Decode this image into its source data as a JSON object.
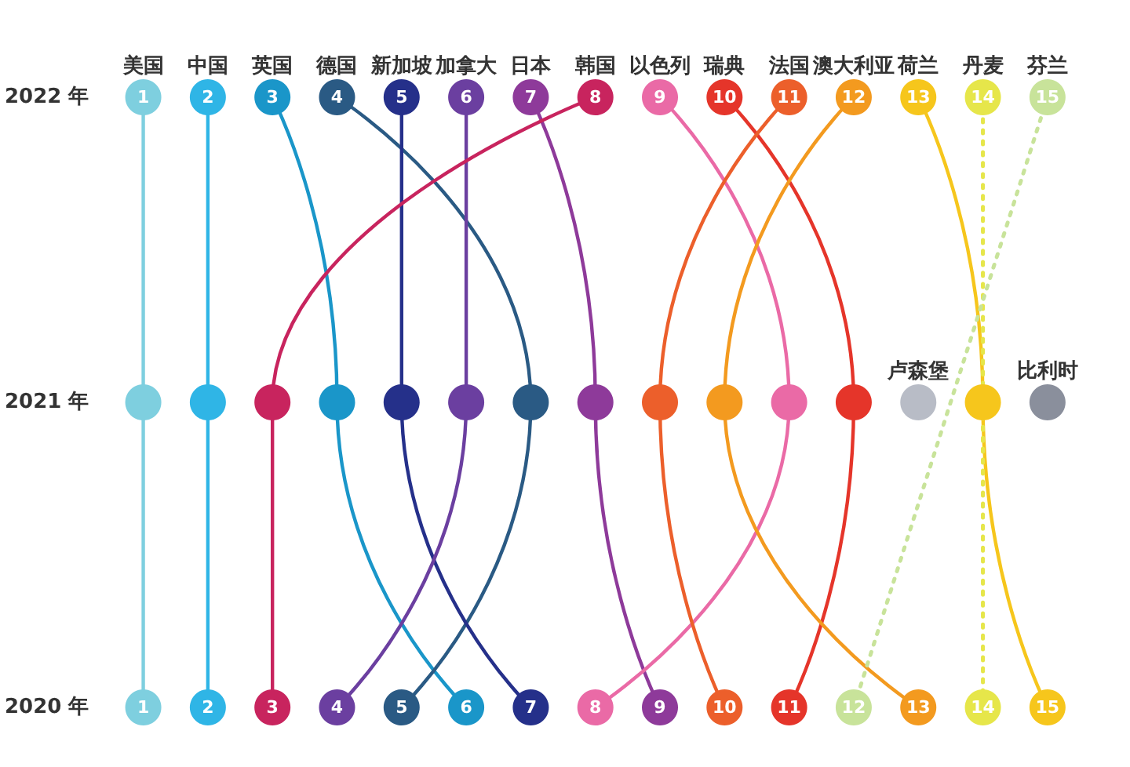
{
  "chart_data": {
    "type": "line",
    "orientation": "horizontal",
    "categories": [
      "2022 年",
      "2021 年",
      "2020 年"
    ],
    "marker": "circle",
    "line_style": "solid",
    "grid": false,
    "legend": false,
    "series": [
      {
        "name": "美国",
        "color": "#7ecfdf",
        "values": [
          1,
          1,
          1
        ],
        "value_labels": [
          "1",
          null,
          "1"
        ]
      },
      {
        "name": "中国",
        "color": "#2fb5e6",
        "values": [
          2,
          2,
          2
        ],
        "value_labels": [
          "2",
          null,
          "2"
        ]
      },
      {
        "name": "英国",
        "color": "#1a96c9",
        "values": [
          3,
          4,
          6
        ],
        "value_labels": [
          "3",
          null,
          "6"
        ]
      },
      {
        "name": "德国",
        "color": "#2a5a84",
        "values": [
          4,
          7,
          5
        ],
        "value_labels": [
          "4",
          null,
          "5"
        ]
      },
      {
        "name": "新加坡",
        "color": "#25308a",
        "values": [
          5,
          5,
          7
        ],
        "value_labels": [
          "5",
          null,
          "7"
        ]
      },
      {
        "name": "加拿大",
        "color": "#6b3fa0",
        "values": [
          6,
          6,
          4
        ],
        "value_labels": [
          "6",
          null,
          "4"
        ]
      },
      {
        "name": "日本",
        "color": "#8e3a9a",
        "values": [
          7,
          8,
          9
        ],
        "value_labels": [
          "7",
          null,
          "9"
        ]
      },
      {
        "name": "韩国",
        "color": "#c8245e",
        "values": [
          8,
          3,
          3
        ],
        "value_labels": [
          "8",
          null,
          "3"
        ]
      },
      {
        "name": "以色列",
        "color": "#ea6aa6",
        "values": [
          9,
          11,
          8
        ],
        "value_labels": [
          "9",
          null,
          "8"
        ]
      },
      {
        "name": "瑞典",
        "color": "#e5352a",
        "values": [
          10,
          12,
          11
        ],
        "value_labels": [
          "10",
          null,
          "11"
        ]
      },
      {
        "name": "法国",
        "color": "#ec5f2b",
        "values": [
          11,
          9,
          10
        ],
        "value_labels": [
          "11",
          null,
          "10"
        ]
      },
      {
        "name": "澳大利亚",
        "color": "#f39a1f",
        "values": [
          12,
          10,
          13
        ],
        "value_labels": [
          "12",
          null,
          "13"
        ]
      },
      {
        "name": "荷兰",
        "color": "#f6c61c",
        "values": [
          13,
          14,
          15
        ],
        "value_labels": [
          "13",
          null,
          "15"
        ]
      },
      {
        "name": "丹麦",
        "color": "#e6e64a",
        "line_style": "dotted",
        "values": [
          14,
          null,
          14
        ],
        "value_labels": [
          "14",
          null,
          "14"
        ]
      },
      {
        "name": "芬兰",
        "color": "#c8e39a",
        "line_style": "dotted",
        "values": [
          15,
          null,
          12
        ],
        "value_labels": [
          "15",
          null,
          "12"
        ]
      },
      {
        "name": "卢森堡",
        "color": "#b8bcc6",
        "values": [
          null,
          13,
          null
        ],
        "value_labels": [
          null,
          null,
          null
        ]
      },
      {
        "name": "比利时",
        "color": "#8a8f9c",
        "values": [
          null,
          15,
          null
        ],
        "value_labels": [
          null,
          null,
          null
        ]
      }
    ]
  }
}
